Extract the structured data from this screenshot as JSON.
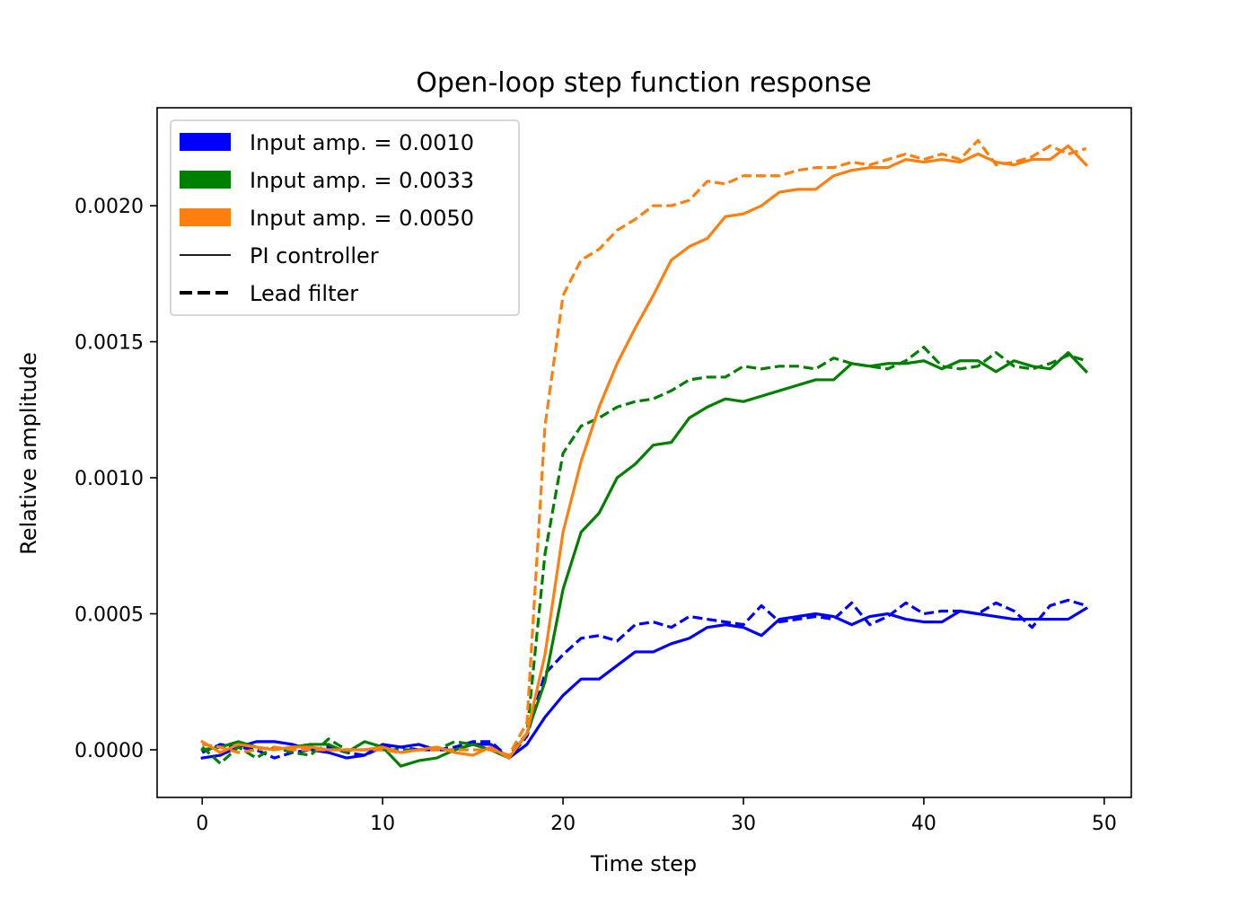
{
  "chart_data": {
    "type": "line",
    "title": "Open-loop step function response",
    "xlabel": "Time step",
    "ylabel": "Relative amplitude",
    "xlim": [
      -2.5,
      51.5
    ],
    "ylim": [
      -0.000175,
      0.00236
    ],
    "xticks": [
      0,
      10,
      20,
      30,
      40,
      50
    ],
    "xtick_labels": [
      "0",
      "10",
      "20",
      "30",
      "40",
      "50"
    ],
    "yticks": [
      0.0,
      0.0005,
      0.001,
      0.0015,
      0.002
    ],
    "ytick_labels": [
      "0.0000",
      "0.0005",
      "0.0010",
      "0.0015",
      "0.0020"
    ],
    "grid": false,
    "legend_position": "top-left",
    "legend": [
      {
        "label": "Input amp. = 0.0010",
        "kind": "patch",
        "color": "#0000ff"
      },
      {
        "label": "Input amp. = 0.0033",
        "kind": "patch",
        "color": "#008000"
      },
      {
        "label": "Input amp. = 0.0050",
        "kind": "patch",
        "color": "#ff7f0e"
      },
      {
        "label": "PI controller",
        "kind": "solid",
        "color": "#000000"
      },
      {
        "label": "Lead filter",
        "kind": "dashed",
        "color": "#000000"
      }
    ],
    "series": [
      {
        "color": "#0000ff",
        "style": "solid",
        "values": [
          -3e-05,
          -2e-05,
          1e-05,
          3e-05,
          3e-05,
          2e-05,
          0.0,
          -1e-05,
          -3e-05,
          -2e-05,
          2e-05,
          1e-05,
          2e-05,
          0.0,
          0.0,
          2e-05,
          2e-05,
          -3e-05,
          2e-05,
          0.00012,
          0.0002,
          0.00026,
          0.00026,
          0.00031,
          0.00036,
          0.00036,
          0.00039,
          0.00041,
          0.00045,
          0.00046,
          0.00045,
          0.00042,
          0.00048,
          0.00049,
          0.0005,
          0.00049,
          0.00046,
          0.00049,
          0.0005,
          0.00048,
          0.00047,
          0.00047,
          0.00051,
          0.0005,
          0.00049,
          0.00048,
          0.00048,
          0.00048,
          0.00048,
          0.00052
        ]
      },
      {
        "color": "#0000ff",
        "style": "dashed",
        "values": [
          -1e-05,
          2e-05,
          1e-05,
          0.0,
          -3e-05,
          -1e-05,
          0.0,
          1e-05,
          -1e-05,
          -2e-05,
          1e-05,
          1e-05,
          0.0,
          0.0,
          1e-05,
          3e-05,
          3e-05,
          -3e-05,
          5e-05,
          0.00028,
          0.00035,
          0.00041,
          0.00042,
          0.0004,
          0.00046,
          0.00047,
          0.00045,
          0.00049,
          0.00048,
          0.00047,
          0.00046,
          0.00053,
          0.00047,
          0.00048,
          0.00049,
          0.00048,
          0.00054,
          0.00046,
          0.00049,
          0.00054,
          0.0005,
          0.00051,
          0.00051,
          0.0005,
          0.00054,
          0.00051,
          0.00045,
          0.00053,
          0.00055,
          0.00053
        ]
      },
      {
        "color": "#008000",
        "style": "solid",
        "values": [
          0.0,
          1e-05,
          3e-05,
          1e-05,
          0.0,
          1e-05,
          2e-05,
          2e-05,
          -1e-05,
          3e-05,
          1e-05,
          -6e-05,
          -4e-05,
          -3e-05,
          0.0,
          2e-05,
          0.0,
          -3e-05,
          6e-05,
          0.00025,
          0.00059,
          0.0008,
          0.00087,
          0.001,
          0.00105,
          0.00112,
          0.00113,
          0.00122,
          0.00126,
          0.00129,
          0.00128,
          0.0013,
          0.00132,
          0.00134,
          0.00136,
          0.00136,
          0.00142,
          0.00141,
          0.00142,
          0.00142,
          0.00143,
          0.0014,
          0.00143,
          0.00143,
          0.00139,
          0.00143,
          0.00141,
          0.0014,
          0.00146,
          0.00139
        ]
      },
      {
        "color": "#008000",
        "style": "dashed",
        "values": [
          1e-05,
          -5e-05,
          1e-05,
          -3e-05,
          1e-05,
          -1e-05,
          -2e-05,
          4e-05,
          0.0,
          0.0,
          0.0,
          0.0,
          0.0,
          0.0,
          3e-05,
          2e-05,
          0.0,
          -2e-05,
          6e-05,
          0.00072,
          0.00109,
          0.00119,
          0.00122,
          0.00126,
          0.00128,
          0.00129,
          0.00132,
          0.00136,
          0.00137,
          0.00137,
          0.00141,
          0.0014,
          0.00141,
          0.00141,
          0.0014,
          0.00144,
          0.00142,
          0.00141,
          0.0014,
          0.00143,
          0.00148,
          0.00141,
          0.0014,
          0.00141,
          0.00146,
          0.00141,
          0.0014,
          0.00142,
          0.00145,
          0.00143
        ]
      },
      {
        "color": "#ff7f0e",
        "style": "solid",
        "values": [
          3e-05,
          -1e-05,
          2e-05,
          1e-05,
          0.0,
          1e-05,
          1e-05,
          0.0,
          0.0,
          0.0,
          1e-05,
          -1e-05,
          0.0,
          1e-05,
          -1e-05,
          -2e-05,
          1e-05,
          -3e-05,
          6e-05,
          0.00035,
          0.0008,
          0.00106,
          0.00126,
          0.00142,
          0.00155,
          0.00167,
          0.0018,
          0.00185,
          0.00188,
          0.00196,
          0.00197,
          0.002,
          0.00205,
          0.00206,
          0.00206,
          0.00211,
          0.00213,
          0.00214,
          0.00214,
          0.00217,
          0.00216,
          0.00217,
          0.00216,
          0.00219,
          0.00216,
          0.00215,
          0.00217,
          0.00217,
          0.00222,
          0.00215
        ]
      },
      {
        "color": "#ff7f0e",
        "style": "dashed",
        "values": [
          2e-05,
          1e-05,
          -1e-05,
          0.0,
          1e-05,
          0.0,
          0.0,
          0.0,
          0.0,
          0.0,
          0.0,
          -1e-05,
          0.0,
          0.0,
          0.0,
          0.0,
          0.0,
          -2e-05,
          0.0001,
          0.00119,
          0.00167,
          0.0018,
          0.00184,
          0.00191,
          0.00195,
          0.002,
          0.002,
          0.00202,
          0.00209,
          0.00208,
          0.00211,
          0.00211,
          0.00211,
          0.00213,
          0.00214,
          0.00214,
          0.00216,
          0.00215,
          0.00217,
          0.00219,
          0.00217,
          0.00219,
          0.00217,
          0.00224,
          0.00215,
          0.00216,
          0.00218,
          0.00222,
          0.00219,
          0.00221
        ]
      }
    ]
  }
}
